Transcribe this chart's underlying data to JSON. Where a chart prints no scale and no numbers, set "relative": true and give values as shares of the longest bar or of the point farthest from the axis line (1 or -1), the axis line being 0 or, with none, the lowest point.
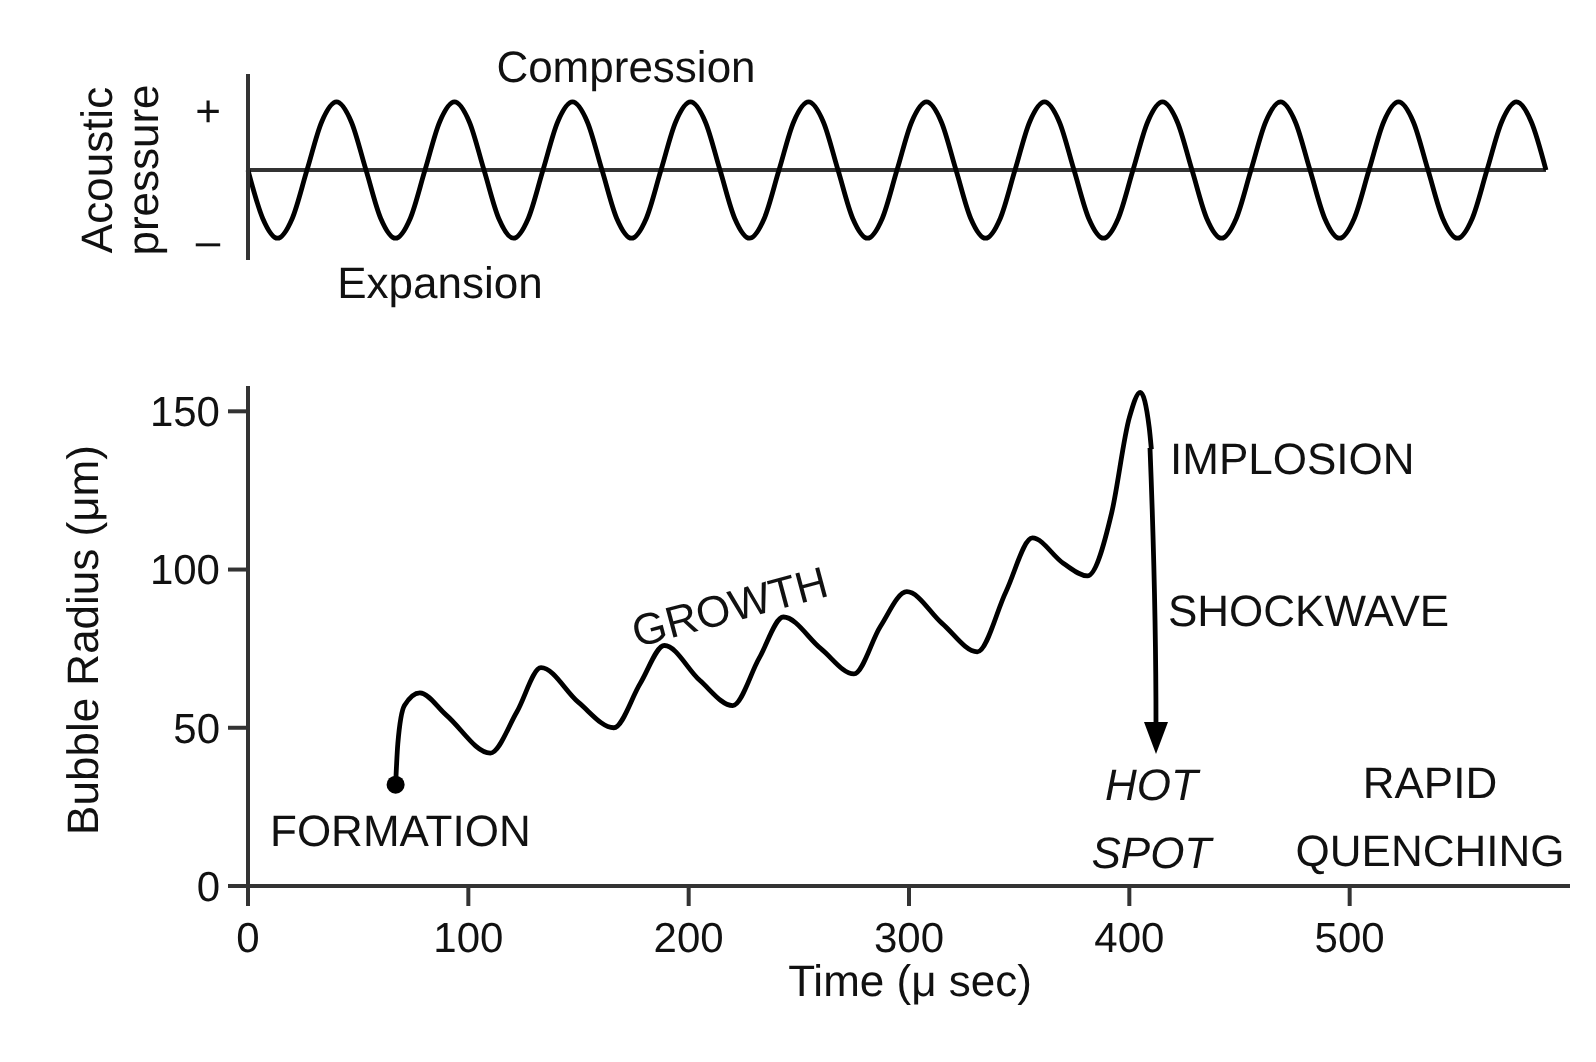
{
  "chart_data": [
    {
      "type": "line",
      "relative": true,
      "ylabel": "Acoustic pressure",
      "legend": false,
      "grid": false,
      "marker": "none",
      "line_style": "solid",
      "categories": [
        null,
        null,
        null,
        null,
        null,
        null,
        null,
        null,
        null,
        null,
        null,
        null,
        null,
        null,
        null,
        null,
        null,
        null,
        null,
        null,
        null,
        null,
        null,
        null,
        null,
        null,
        null,
        null,
        null,
        null,
        null,
        null,
        null,
        null,
        null,
        null,
        null,
        null,
        null,
        null,
        null,
        null,
        null,
        null,
        null,
        null,
        null,
        null,
        null,
        null,
        null,
        null,
        null,
        null,
        null,
        null,
        null,
        null,
        null,
        null,
        null,
        null,
        null,
        null,
        null,
        null,
        null,
        null,
        null,
        null,
        null,
        null,
        null,
        null,
        null,
        null,
        null,
        null,
        null,
        null,
        null,
        null,
        null,
        null,
        null,
        null,
        null,
        null,
        null
      ],
      "series": [
        {
          "color": "#000000",
          "values": [
            0,
            -0.71,
            -1,
            -0.71,
            0,
            0.71,
            1,
            0.71,
            0,
            -0.71,
            -1,
            -0.71,
            0,
            0.71,
            1,
            0.71,
            0,
            -0.71,
            -1,
            -0.71,
            0,
            0.71,
            1,
            0.71,
            0,
            -0.71,
            -1,
            -0.71,
            0,
            0.71,
            1,
            0.71,
            0,
            -0.71,
            -1,
            -0.71,
            0,
            0.71,
            1,
            0.71,
            0,
            -0.71,
            -1,
            -0.71,
            0,
            0.71,
            1,
            0.71,
            0,
            -0.71,
            -1,
            -0.71,
            0,
            0.71,
            1,
            0.71,
            0,
            -0.71,
            -1,
            -0.71,
            0,
            0.71,
            1,
            0.71,
            0,
            -0.71,
            -1,
            -0.71,
            0,
            0.71,
            1,
            0.71,
            0,
            -0.71,
            -1,
            -0.71,
            0,
            0.71,
            1,
            0.71,
            0,
            -0.71,
            -1,
            -0.71,
            0,
            0.71,
            1,
            0.71,
            0
          ]
        }
      ],
      "annotations": [
        "Compression",
        "Expansion",
        "+",
        "–"
      ]
    },
    {
      "type": "line",
      "xlabel": "Time (μ sec)",
      "ylabel": "Bubble Radius (μm)",
      "legend": false,
      "grid": false,
      "line_style": "solid",
      "xlim": [
        0,
        600
      ],
      "xticks": [
        0,
        100,
        200,
        300,
        400,
        500
      ],
      "ylim": [
        0,
        158
      ],
      "yticks": [
        0,
        50,
        100,
        150
      ],
      "x": [
        67,
        68,
        71,
        78,
        90,
        110,
        122,
        133,
        150,
        166,
        178,
        189,
        205,
        220,
        232,
        243,
        260,
        275,
        287,
        299,
        315,
        331,
        344,
        356,
        370,
        381,
        392,
        400,
        405,
        409,
        410
      ],
      "series": [
        {
          "color": "#000000",
          "marker": "none",
          "values": [
            32,
            45,
            57,
            61,
            54,
            42,
            55,
            69,
            58,
            50,
            64,
            76,
            65,
            57,
            72,
            85,
            75,
            67,
            82,
            93,
            83,
            74,
            93,
            110,
            102,
            98,
            118,
            148,
            156,
            145,
            138
          ]
        },
        {
          "type": "scatter",
          "color": "#000000",
          "marker": "circle",
          "x": [
            67
          ],
          "values": [
            32
          ]
        }
      ],
      "annotations": [
        "FORMATION",
        "GROWTH",
        "IMPLOSION",
        "SHOCKWAVE",
        {
          "text": "HOT SPOT",
          "x": 410,
          "y": 138
        },
        "RAPID QUENCHING"
      ]
    }
  ]
}
